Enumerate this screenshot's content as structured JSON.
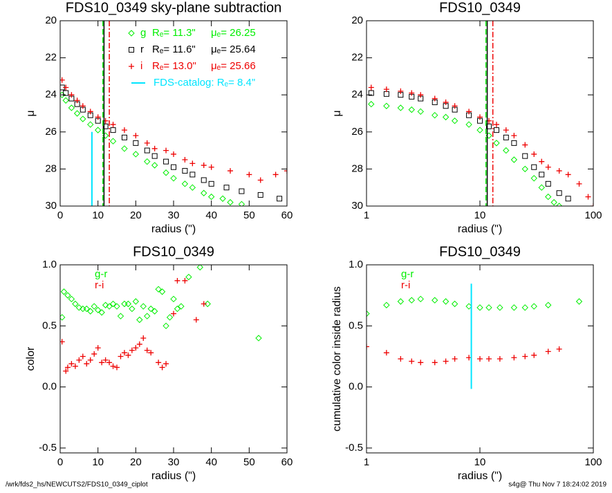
{
  "chart_data": [
    {
      "type": "scatter",
      "title": "FDS10_0349 sky-plane subtraction",
      "x_label": "radius (\")",
      "y_label": "μ",
      "xlog": false,
      "xlim": [
        0,
        60
      ],
      "xticks": [
        0,
        10,
        20,
        30,
        40,
        50,
        60
      ],
      "ylim": [
        30,
        20
      ],
      "yticks": [
        20,
        22,
        24,
        26,
        28,
        30
      ],
      "series": [
        {
          "name": "g",
          "color": "#00ee00",
          "marker": "diamond",
          "re_label": "Rₑ= 11.3\"",
          "mu_label": "μₑ= 26.25",
          "x": [
            0.5,
            1.5,
            3,
            4.5,
            6,
            8,
            10,
            12,
            14,
            17,
            20,
            23,
            25,
            28,
            30,
            33,
            35,
            38,
            40,
            43,
            45,
            48
          ],
          "y": [
            24.0,
            24.3,
            24.7,
            25.0,
            25.3,
            25.6,
            25.9,
            26.2,
            26.5,
            26.9,
            27.2,
            27.6,
            27.8,
            28.2,
            28.5,
            28.8,
            29.0,
            29.3,
            29.5,
            29.6,
            29.8,
            29.9
          ]
        },
        {
          "name": "r",
          "color": "#000000",
          "marker": "square",
          "re_label": "Rₑ= 11.6\"",
          "mu_label": "μₑ= 25.64",
          "x": [
            0.5,
            1.5,
            3,
            4.5,
            6,
            8,
            10,
            12,
            14,
            17,
            20,
            23,
            25,
            28,
            30,
            33,
            35,
            38,
            40,
            44,
            48,
            53,
            58
          ],
          "y": [
            23.6,
            23.9,
            24.2,
            24.5,
            24.8,
            25.1,
            25.4,
            25.7,
            25.9,
            26.3,
            26.6,
            27.0,
            27.3,
            27.6,
            27.9,
            28.1,
            28.3,
            28.6,
            28.8,
            29.0,
            29.2,
            29.4,
            29.6
          ]
        },
        {
          "name": "i",
          "color": "#ee0000",
          "marker": "plus",
          "re_label": "Rₑ= 13.0\"",
          "mu_label": "μₑ= 25.66",
          "x": [
            0.5,
            1.5,
            3,
            4.5,
            6,
            8,
            10,
            12,
            14,
            17,
            20,
            23,
            25,
            28,
            30,
            33,
            35,
            38,
            40,
            45,
            50,
            53,
            57,
            60
          ],
          "y": [
            23.2,
            23.6,
            24.0,
            24.3,
            24.6,
            24.9,
            25.2,
            25.4,
            25.6,
            25.9,
            26.2,
            26.6,
            26.9,
            27.0,
            27.2,
            27.5,
            27.7,
            27.8,
            27.9,
            28.1,
            28.3,
            28.6,
            28.3,
            28.1
          ]
        }
      ],
      "vlines": [
        {
          "x": 11.3,
          "color": "#00ee00",
          "dash": "8,4"
        },
        {
          "x": 11.6,
          "color": "#000000",
          "dash": "none"
        },
        {
          "x": 13.0,
          "color": "#ee0000",
          "dash": "8,3,2,3"
        }
      ],
      "catalog": {
        "label": "FDS-catalog: Rₑ=   8.4\"",
        "x": 8.4,
        "color": "#00e5ff"
      }
    },
    {
      "type": "scatter",
      "title": "FDS10_0349",
      "x_label": "radius (\")",
      "y_label": "μ",
      "xlog": true,
      "xlim": [
        1,
        100
      ],
      "xticks": [
        1,
        10,
        100
      ],
      "ylim": [
        30,
        20
      ],
      "yticks": [
        20,
        22,
        24,
        26,
        28,
        30
      ],
      "series": [
        {
          "name": "g",
          "color": "#00ee00",
          "marker": "diamond",
          "x": [
            1.1,
            1.5,
            2,
            2.5,
            3,
            4,
            5,
            6,
            8,
            10,
            12,
            14,
            17,
            20,
            25,
            30,
            35,
            40,
            45,
            50
          ],
          "y": [
            24.5,
            24.6,
            24.7,
            24.8,
            24.9,
            25.1,
            25.2,
            25.4,
            25.6,
            25.9,
            26.2,
            26.6,
            27.0,
            27.5,
            28.0,
            28.5,
            29.0,
            29.5,
            29.8,
            30.0
          ]
        },
        {
          "name": "r",
          "color": "#000000",
          "marker": "square",
          "x": [
            1.1,
            1.5,
            2,
            2.5,
            3,
            4,
            5,
            6,
            8,
            10,
            12,
            14,
            17,
            20,
            25,
            30,
            35,
            40,
            50,
            60
          ],
          "y": [
            23.9,
            23.95,
            24.0,
            24.1,
            24.2,
            24.4,
            24.6,
            24.8,
            25.1,
            25.4,
            25.7,
            25.9,
            26.3,
            26.6,
            27.3,
            27.9,
            28.3,
            28.8,
            29.3,
            29.6
          ]
        },
        {
          "name": "i",
          "color": "#ee0000",
          "marker": "plus",
          "x": [
            1.1,
            1.5,
            2,
            2.5,
            3,
            4,
            5,
            6,
            8,
            10,
            12,
            14,
            17,
            20,
            25,
            30,
            35,
            40,
            50,
            60,
            75,
            90,
            100
          ],
          "y": [
            23.6,
            23.7,
            23.8,
            23.9,
            24.0,
            24.2,
            24.4,
            24.6,
            24.9,
            25.2,
            25.4,
            25.6,
            25.9,
            26.2,
            26.7,
            27.2,
            27.6,
            27.9,
            28.1,
            28.3,
            28.8,
            29.5,
            30.0
          ]
        }
      ],
      "vlines": [
        {
          "x": 11.3,
          "color": "#00ee00",
          "dash": "8,4"
        },
        {
          "x": 11.6,
          "color": "#000000",
          "dash": "none"
        },
        {
          "x": 13.0,
          "color": "#ee0000",
          "dash": "8,3,2,3"
        }
      ]
    },
    {
      "type": "scatter",
      "title": "FDS10_0349",
      "x_label": "radius (\")",
      "y_label": "color",
      "xlog": false,
      "xlim": [
        0,
        60
      ],
      "xticks": [
        0,
        10,
        20,
        30,
        40,
        50,
        60
      ],
      "ylim": [
        -0.54,
        1.0
      ],
      "yticks": [
        -0.5,
        {
          "value": 0,
          "label": "0.0"
        },
        0.5,
        {
          "value": 1,
          "label": "1.0"
        }
      ],
      "series": [
        {
          "name": "g-r",
          "color": "#00ee00",
          "marker": "diamond",
          "x": [
            0.5,
            1,
            2,
            3,
            4,
            5,
            6,
            7,
            8,
            9,
            10,
            11,
            12,
            13,
            14,
            15,
            16,
            17,
            18,
            19,
            20,
            21,
            22,
            23,
            24,
            25,
            26,
            27,
            28,
            29,
            30,
            31,
            32,
            34,
            37,
            39,
            52.5
          ],
          "y": [
            0.57,
            0.78,
            0.75,
            0.72,
            0.68,
            0.65,
            0.64,
            0.64,
            0.62,
            0.66,
            0.63,
            0.61,
            0.67,
            0.66,
            0.68,
            0.66,
            0.58,
            0.68,
            0.68,
            0.64,
            0.7,
            0.55,
            0.66,
            0.58,
            0.64,
            0.62,
            0.8,
            0.78,
            0.5,
            0.57,
            0.72,
            0.64,
            0.66,
            0.9,
            0.98,
            0.68,
            0.4
          ]
        },
        {
          "name": "r-i",
          "color": "#ee0000",
          "marker": "plus",
          "x": [
            0.5,
            1.5,
            2,
            3,
            4,
            5,
            6,
            7,
            8,
            9,
            10,
            11,
            12,
            13,
            14,
            15,
            16,
            17,
            18,
            19,
            20,
            21,
            22,
            23,
            24,
            26,
            27,
            28,
            30,
            31,
            33,
            36,
            38
          ],
          "y": [
            0.37,
            0.13,
            0.16,
            0.19,
            0.17,
            0.22,
            0.25,
            0.19,
            0.22,
            0.27,
            0.32,
            0.2,
            0.22,
            0.2,
            0.17,
            0.16,
            0.25,
            0.28,
            0.26,
            0.3,
            0.32,
            0.35,
            0.4,
            0.3,
            0.28,
            0.2,
            0.16,
            0.19,
            0.6,
            0.87,
            0.87,
            0.55,
            0.68
          ]
        }
      ],
      "vlines": []
    },
    {
      "type": "scatter",
      "title": "FDS10_0349",
      "x_label": "radius (\")",
      "y_label": "cumulative color inside radius",
      "xlog": true,
      "xlim": [
        1,
        100
      ],
      "xticks": [
        1,
        10,
        100
      ],
      "ylim": [
        -0.54,
        1.0
      ],
      "yticks": [
        -0.5,
        {
          "value": 0,
          "label": "0.0"
        },
        0.5,
        {
          "value": 1,
          "label": "1.0"
        }
      ],
      "series": [
        {
          "name": "g-r",
          "color": "#00ee00",
          "marker": "diamond",
          "x": [
            1,
            1.5,
            2,
            2.5,
            3,
            4,
            5,
            6,
            8,
            10,
            12,
            15,
            20,
            25,
            30,
            40,
            75
          ],
          "y": [
            0.6,
            0.67,
            0.7,
            0.71,
            0.72,
            0.71,
            0.7,
            0.68,
            0.66,
            0.65,
            0.65,
            0.65,
            0.65,
            0.65,
            0.66,
            0.67,
            0.7
          ]
        },
        {
          "name": "r-i",
          "color": "#ee0000",
          "marker": "plus",
          "x": [
            1,
            1.5,
            2,
            2.5,
            3,
            4,
            5,
            6,
            8,
            10,
            12,
            15,
            20,
            25,
            30,
            40,
            50
          ],
          "y": [
            0.33,
            0.28,
            0.23,
            0.21,
            0.2,
            0.2,
            0.21,
            0.23,
            0.24,
            0.23,
            0.23,
            0.23,
            0.24,
            0.25,
            0.26,
            0.29,
            0.31
          ]
        }
      ],
      "vlines": [],
      "catalog": {
        "x": 8.4,
        "color": "#00e5ff"
      }
    }
  ],
  "footer": {
    "left": "/wrk/fds2_hs/NEWCUTS2/FDS10_0349_ciplot",
    "right": "s4g@  Thu Nov  7 18:24:02 2019"
  }
}
